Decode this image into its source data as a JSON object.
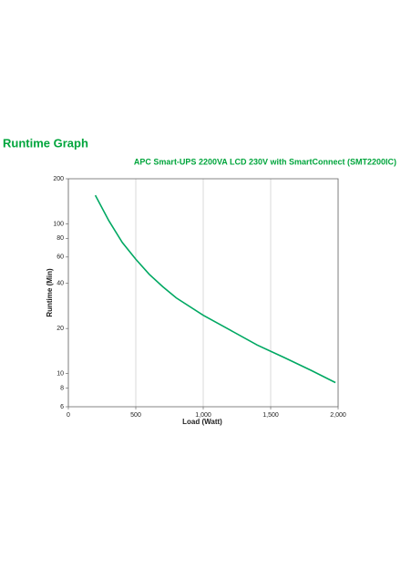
{
  "chart_data": {
    "type": "line",
    "title": "Runtime Graph",
    "subtitle": "APC Smart-UPS 2200VA LCD 230V with SmartConnect (SMT2200IC)",
    "x_label": "Load (Watt)",
    "y_label": "Runtime (Min)",
    "x": [
      200,
      300,
      400,
      500,
      600,
      700,
      800,
      1000,
      1200,
      1400,
      1600,
      1800,
      1980
    ],
    "series": [
      {
        "name": "Runtime",
        "color": "#00a862",
        "values": [
          155,
          105,
          75,
          58,
          46,
          38,
          32,
          24.5,
          19.5,
          15.5,
          12.8,
          10.5,
          8.7
        ]
      }
    ],
    "xlim": [
      0,
      2000
    ],
    "xticks": [
      0,
      500,
      {
        "value": 1000,
        "label": "1,000"
      },
      {
        "value": 1500,
        "label": "1,500"
      },
      {
        "value": 2000,
        "label": "2,000"
      }
    ],
    "ylim": [
      6,
      200
    ],
    "yticks": [
      6,
      8,
      10,
      20,
      40,
      60,
      80,
      100,
      200
    ],
    "y_scale": "log",
    "grid": "x",
    "title_color": "#00a53c"
  }
}
